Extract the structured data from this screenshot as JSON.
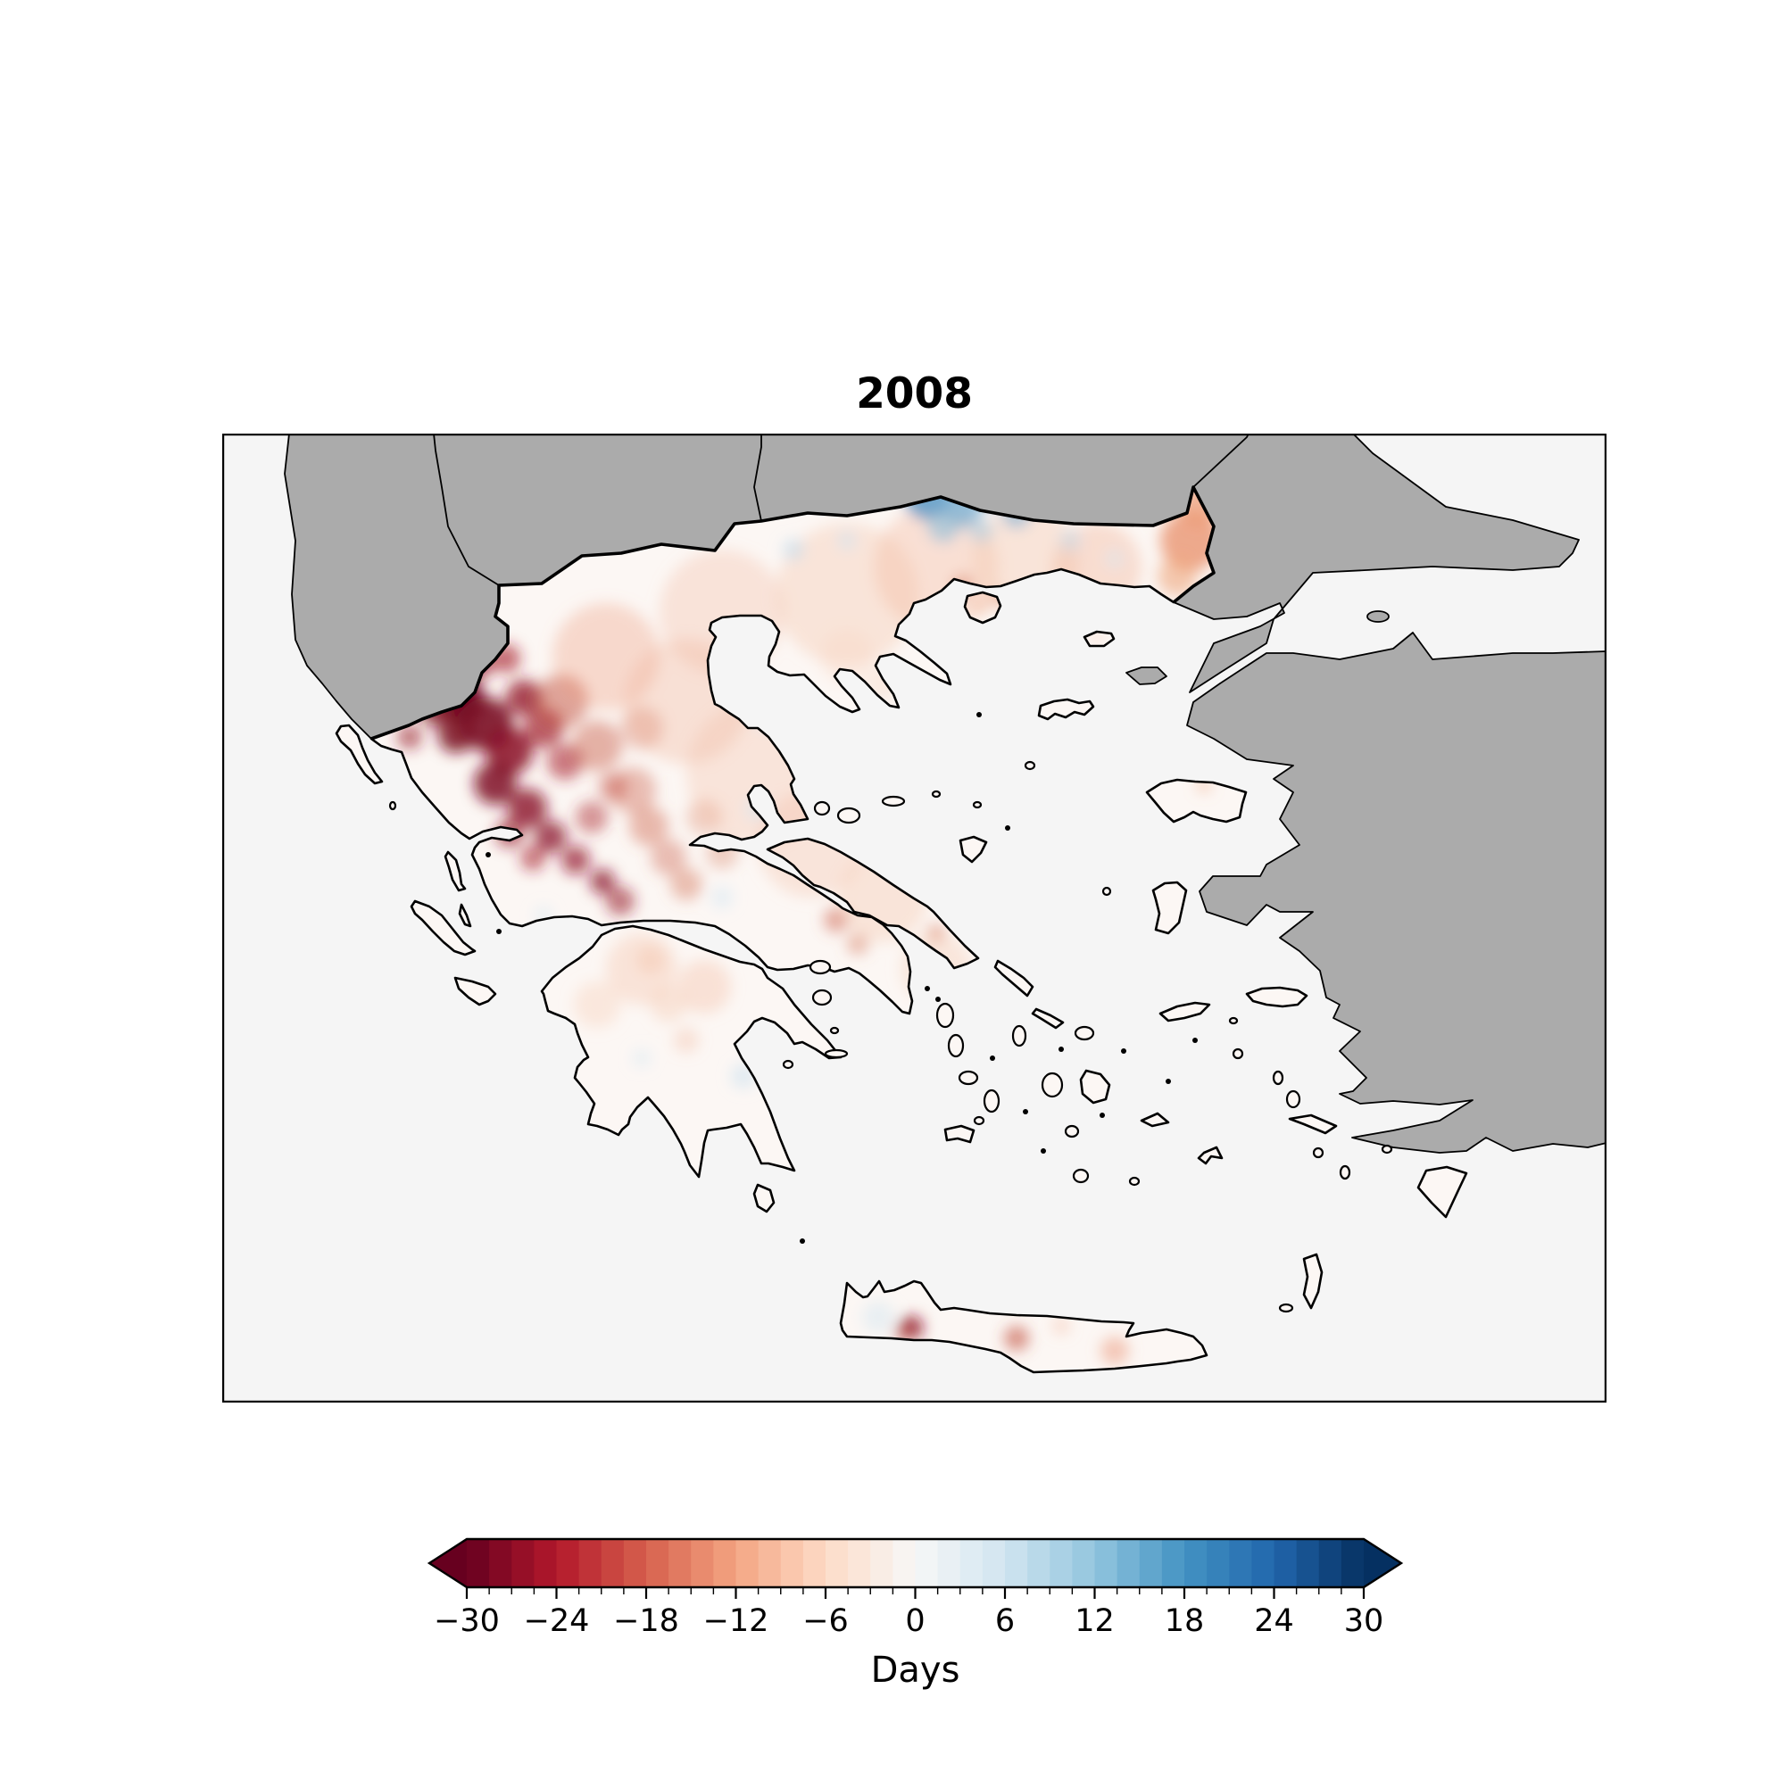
{
  "figure": {
    "title": "2008",
    "map": {
      "sea_color": "#f5f5f5",
      "nodata_land_color": "#ababab",
      "greek_land_base": "#fcf7f4",
      "coast_color": "#000000",
      "frame_color": "#000000"
    },
    "colorbar": {
      "label": "Days",
      "vmin": -30,
      "vmax": 30,
      "major_tick_step": 6,
      "minor_tick_step": 1.5,
      "segment_step": 1.5,
      "extend": "both",
      "colormap": "RdBu",
      "tick_values": [
        -30,
        -24,
        -18,
        -12,
        -6,
        0,
        6,
        12,
        18,
        24,
        30
      ],
      "tick_labels": [
        "−30",
        "−24",
        "−18",
        "−12",
        "−6",
        "0",
        "6",
        "12",
        "18",
        "24",
        "30"
      ],
      "rdbu_anchors": [
        "#67001f",
        "#b2182b",
        "#d6604d",
        "#f4a582",
        "#fddbc7",
        "#f7f7f7",
        "#d1e5f0",
        "#92c5de",
        "#4393c3",
        "#2166ac",
        "#053061"
      ]
    }
  },
  "chart_data": {
    "type": "heatmap",
    "title": "2008",
    "ylabel": "",
    "xlabel": "",
    "legend_label": "Days",
    "value_range": [
      -30,
      30
    ],
    "geographic_region": "Greece and the Aegean (neighboring countries masked gray)",
    "anomaly_regions": [
      {
        "area": "Epirus & West Macedonia (NW Greece)",
        "approx_days": -28
      },
      {
        "area": "Pindus range / western Thessaly",
        "approx_days": -18
      },
      {
        "area": "Central & Eastern Macedonia lowlands",
        "approx_days": -6
      },
      {
        "area": "Rhodope border area (north-central)",
        "approx_days": 10
      },
      {
        "area": "Evros / NE Thrace bulge",
        "approx_days": -12
      },
      {
        "area": "Sterea Ellada, Boeotia & Attica",
        "approx_days": -8
      },
      {
        "area": "Peloponnese",
        "approx_days": -3
      },
      {
        "area": "Aegean islands",
        "approx_days": 0
      },
      {
        "area": "Crete (isolated inland spots)",
        "approx_days": -15
      }
    ],
    "field_blobs": [
      [
        268,
        298,
        26,
        "#6e0520",
        0.95
      ],
      [
        296,
        326,
        30,
        "#7a0a22",
        0.9
      ],
      [
        322,
        356,
        26,
        "#8a1026",
        0.85
      ],
      [
        338,
        296,
        20,
        "#951529",
        0.8
      ],
      [
        262,
        338,
        20,
        "#7a0a22",
        0.85
      ],
      [
        306,
        392,
        24,
        "#7f0c23",
        0.85
      ],
      [
        342,
        420,
        22,
        "#8a1026",
        0.8
      ],
      [
        286,
        258,
        18,
        "#9a1a2c",
        0.7
      ],
      [
        318,
        252,
        16,
        "#a81f2d",
        0.65
      ],
      [
        360,
        330,
        22,
        "#9f1b2b",
        0.7
      ],
      [
        384,
        368,
        20,
        "#aa2430",
        0.6
      ],
      [
        368,
        452,
        18,
        "#8a1026",
        0.75
      ],
      [
        396,
        478,
        16,
        "#931528",
        0.7
      ],
      [
        426,
        502,
        14,
        "#8a1026",
        0.75
      ],
      [
        446,
        524,
        16,
        "#9a1a2c",
        0.6
      ],
      [
        414,
        430,
        18,
        "#b03037",
        0.5
      ],
      [
        438,
        396,
        16,
        "#bc3d38",
        0.45
      ],
      [
        348,
        476,
        14,
        "#a81f2d",
        0.6
      ],
      [
        322,
        448,
        16,
        "#9a1a2c",
        0.65
      ],
      [
        230,
        270,
        22,
        "#8a1026",
        0.8
      ],
      [
        240,
        310,
        18,
        "#7f0c23",
        0.8
      ],
      [
        210,
        340,
        14,
        "#9a1a2c",
        0.6
      ],
      [
        380,
        300,
        30,
        "#c24e3c",
        0.5
      ],
      [
        420,
        350,
        28,
        "#c85a45",
        0.45
      ],
      [
        460,
        400,
        26,
        "#cc6450",
        0.4
      ],
      [
        478,
        440,
        22,
        "#d06a52",
        0.45
      ],
      [
        500,
        475,
        20,
        "#cc6450",
        0.4
      ],
      [
        520,
        505,
        18,
        "#d47a5e",
        0.45
      ],
      [
        470,
        330,
        24,
        "#d06a52",
        0.35
      ],
      [
        540,
        430,
        20,
        "#dd8a6a",
        0.35
      ],
      [
        560,
        470,
        18,
        "#d87f63",
        0.35
      ],
      [
        688,
        545,
        14,
        "#cf6853",
        0.55
      ],
      [
        712,
        572,
        12,
        "#d87f63",
        0.5
      ],
      [
        800,
        560,
        10,
        "#d87f63",
        0.6
      ],
      [
        430,
        250,
        60,
        "#eda085",
        0.35
      ],
      [
        520,
        300,
        70,
        "#f2b49a",
        0.35
      ],
      [
        600,
        380,
        80,
        "#f4c0a8",
        0.35
      ],
      [
        560,
        200,
        70,
        "#f2b49a",
        0.3
      ],
      [
        660,
        460,
        60,
        "#f4c0a8",
        0.35
      ],
      [
        700,
        180,
        80,
        "#f6c8b0",
        0.4
      ],
      [
        800,
        150,
        70,
        "#f4bca2",
        0.4
      ],
      [
        900,
        140,
        60,
        "#f6c8b0",
        0.4
      ],
      [
        980,
        150,
        50,
        "#f2b49a",
        0.4
      ],
      [
        740,
        520,
        50,
        "#f6c8b0",
        0.4
      ],
      [
        800,
        600,
        40,
        "#f6ccb6",
        0.4
      ],
      [
        470,
        600,
        40,
        "#f6ccb6",
        0.45
      ],
      [
        540,
        620,
        30,
        "#f4c0a8",
        0.4
      ],
      [
        420,
        640,
        26,
        "#f8d5c2",
        0.45
      ],
      [
        700,
        250,
        30,
        "#f8d5c2",
        0.35
      ],
      [
        740,
        280,
        20,
        "#f6ccb6",
        0.3
      ],
      [
        1085,
        120,
        34,
        "#e88f68",
        0.75
      ],
      [
        1095,
        80,
        24,
        "#ec9a74",
        0.7
      ],
      [
        1070,
        160,
        22,
        "#efa67f",
        0.6
      ],
      [
        830,
        170,
        12,
        "#d87f63",
        0.5
      ],
      [
        870,
        185,
        10,
        "#e08a66",
        0.45
      ],
      [
        790,
        70,
        26,
        "#4f93c4",
        0.8
      ],
      [
        830,
        82,
        22,
        "#6aa7cf",
        0.7
      ],
      [
        868,
        62,
        20,
        "#5b9cc9",
        0.75
      ],
      [
        808,
        104,
        18,
        "#8cbcd9",
        0.6
      ],
      [
        850,
        108,
        14,
        "#a9cde2",
        0.55
      ],
      [
        890,
        90,
        16,
        "#7db0d3",
        0.6
      ],
      [
        910,
        70,
        14,
        "#97c1db",
        0.5
      ],
      [
        640,
        130,
        12,
        "#c3dcec",
        0.6
      ],
      [
        700,
        120,
        10,
        "#cfe3f0",
        0.6
      ],
      [
        950,
        120,
        12,
        "#c3dcec",
        0.55
      ],
      [
        1000,
        140,
        10,
        "#d5e7f2",
        0.5
      ],
      [
        610,
        320,
        12,
        "#d5e7f2",
        0.6
      ],
      [
        560,
        520,
        12,
        "#d5e7f2",
        0.55
      ],
      [
        584,
        720,
        14,
        "#cfe3f0",
        0.6
      ],
      [
        470,
        700,
        10,
        "#d5e7f2",
        0.5
      ],
      [
        360,
        540,
        10,
        "#d5e7f2",
        0.5
      ],
      [
        600,
        420,
        14,
        "#d5e7f2",
        0.5
      ],
      [
        500,
        640,
        20,
        "#f6c8b0",
        0.4
      ],
      [
        520,
        680,
        14,
        "#f2b49a",
        0.35
      ],
      [
        480,
        590,
        16,
        "#f4c0a8",
        0.4
      ],
      [
        735,
        990,
        18,
        "#dce9f2",
        0.6
      ],
      [
        772,
        1002,
        13,
        "#8f1026",
        0.85
      ],
      [
        762,
        1008,
        10,
        "#c0503f",
        0.5
      ],
      [
        890,
        1014,
        14,
        "#c24e3c",
        0.6
      ],
      [
        1000,
        1028,
        16,
        "#eda085",
        0.55
      ],
      [
        940,
        1000,
        10,
        "#f2b49a",
        0.4
      ],
      [
        850,
        195,
        8,
        "#efa67f",
        0.5
      ],
      [
        1100,
        394,
        8,
        "#efa67f",
        0.5
      ],
      [
        980,
        228,
        6,
        "#f2b49a",
        0.5
      ]
    ],
    "islet_dots": [
      [
        310,
        558
      ],
      [
        298,
        472
      ],
      [
        848,
        315
      ],
      [
        880,
        442
      ],
      [
        790,
        622
      ],
      [
        802,
        634
      ],
      [
        650,
        905
      ],
      [
        900,
        760
      ],
      [
        986,
        764
      ],
      [
        1060,
        726
      ],
      [
        1090,
        680
      ],
      [
        940,
        690
      ],
      [
        1010,
        692
      ],
      [
        863,
        700
      ],
      [
        920,
        804
      ]
    ],
    "ellipse_islands": [
      [
        810,
        652,
        9,
        13
      ],
      [
        822,
        686,
        8,
        12
      ],
      [
        836,
        722,
        10,
        7
      ],
      [
        862,
        748,
        8,
        12
      ],
      [
        893,
        675,
        7,
        11
      ],
      [
        966,
        672,
        10,
        7
      ],
      [
        930,
        730,
        11,
        13
      ],
      [
        952,
        782,
        7,
        6
      ],
      [
        672,
        632,
        10,
        8
      ],
      [
        670,
        598,
        11,
        7
      ],
      [
        672,
        420,
        8,
        7
      ],
      [
        702,
        428,
        12,
        8
      ],
      [
        752,
        412,
        12,
        5
      ],
      [
        800,
        404,
        4,
        3
      ],
      [
        846,
        416,
        4,
        3
      ],
      [
        1022,
        838,
        5,
        4
      ],
      [
        848,
        770,
        5,
        4
      ],
      [
        1138,
        695,
        5,
        5
      ],
      [
        1183,
        722,
        5,
        7
      ],
      [
        1200,
        746,
        7,
        9
      ],
      [
        1228,
        806,
        5,
        5
      ],
      [
        1258,
        828,
        5,
        7
      ],
      [
        1305,
        802,
        5,
        4
      ],
      [
        1192,
        980,
        7,
        4
      ],
      [
        634,
        707,
        5,
        4
      ],
      [
        686,
        669,
        4,
        3
      ],
      [
        688,
        695,
        12,
        4
      ],
      [
        991,
        513,
        4,
        4
      ],
      [
        905,
        372,
        5,
        4
      ],
      [
        1133,
        658,
        4,
        3
      ],
      [
        191,
        417,
        3,
        4
      ],
      [
        962,
        832,
        8,
        7
      ]
    ]
  }
}
